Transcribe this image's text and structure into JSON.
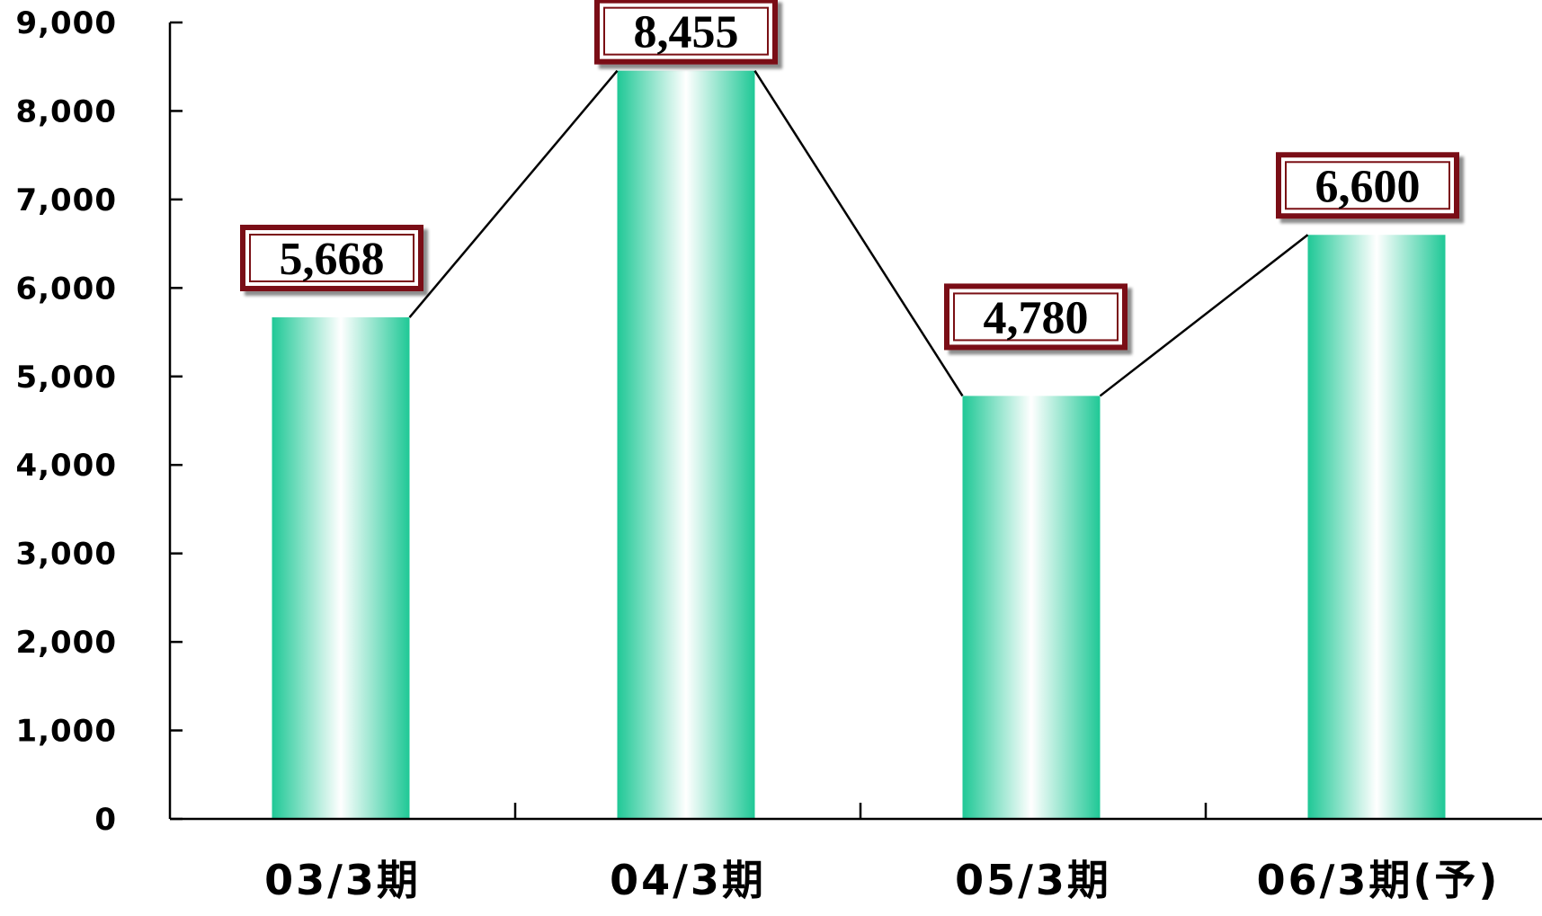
{
  "chart_data": {
    "type": "bar",
    "title": "",
    "xlabel": "",
    "ylabel": "",
    "categories": [
      "03/3期",
      "04/3期",
      "05/3期",
      "06/3期(予)"
    ],
    "values": [
      5668,
      8455,
      4780,
      6600
    ],
    "data_labels": [
      "5,668",
      "8,455",
      "4,780",
      "6,600"
    ],
    "y_tick_labels": [
      "0",
      "1,000",
      "2,000",
      "3,000",
      "4,000",
      "5,000",
      "6,000",
      "7,000",
      "8,000",
      "9,000"
    ],
    "ylim": [
      0,
      9000
    ],
    "y_tick_step": 1000,
    "grid": false,
    "legend": "none",
    "connector_line": true,
    "colors": {
      "bar_edge": "#1fc896",
      "bar_center": "#ffffff",
      "label_box_border": "#7a0f14",
      "label_box_fill": "#ffffff",
      "axis": "#000000"
    }
  }
}
